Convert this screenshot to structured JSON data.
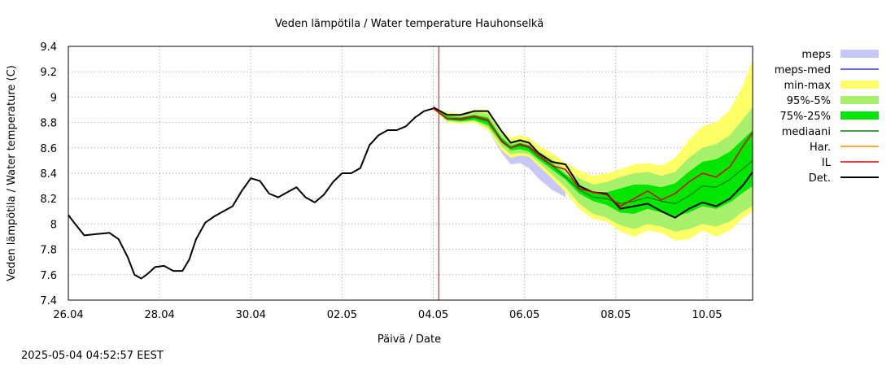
{
  "chart_data": {
    "type": "line",
    "title": "Veden lämpötila / Water temperature Hauhonselkä",
    "xlabel": "Päivä / Date",
    "ylabel": "Veden lämpötila / Water temperature (C)",
    "xlim": [
      0,
      15
    ],
    "ylim": [
      7.4,
      9.4
    ],
    "x_ticks": [
      {
        "x": 0,
        "label": "26.04"
      },
      {
        "x": 2,
        "label": "28.04"
      },
      {
        "x": 4,
        "label": "30.04"
      },
      {
        "x": 6,
        "label": "02.05"
      },
      {
        "x": 8,
        "label": "04.05"
      },
      {
        "x": 10,
        "label": "06.05"
      },
      {
        "x": 12,
        "label": "08.05"
      },
      {
        "x": 14,
        "label": "10.05"
      }
    ],
    "y_ticks": [
      7.4,
      7.6,
      7.8,
      8,
      8.2,
      8.4,
      8.6,
      8.8,
      9,
      9.2,
      9.4
    ],
    "y_tick_labels": [
      "7.4",
      "7.6",
      "7.8",
      "8",
      "8.2",
      "8.4",
      "8.6",
      "8.8",
      "9",
      "9.2",
      "9.4"
    ],
    "grid": true,
    "forecast_start_x": 8.12,
    "legend_position": "right",
    "legend": [
      {
        "label": "meps",
        "kind": "band",
        "color": "#c8c8f8"
      },
      {
        "label": "meps-med",
        "kind": "line",
        "color": "#4040c0"
      },
      {
        "label": "min-max",
        "kind": "band",
        "color": "#ffff66"
      },
      {
        "label": "95%-5%",
        "kind": "band",
        "color": "#a6f06c"
      },
      {
        "label": "75%-25%",
        "kind": "band",
        "color": "#00e600"
      },
      {
        "label": "mediaani",
        "kind": "line",
        "color": "#008000"
      },
      {
        "label": "Har.",
        "kind": "line",
        "color": "#ff8c00"
      },
      {
        "label": "IL",
        "kind": "line",
        "color": "#e00000"
      },
      {
        "label": "Det.",
        "kind": "line",
        "color": "#000000"
      }
    ],
    "observed": {
      "x": [
        0,
        0.15,
        0.35,
        0.6,
        0.9,
        1.1,
        1.3,
        1.45,
        1.6,
        1.75,
        1.9,
        2.1,
        2.3,
        2.5,
        2.65,
        2.8,
        3.0,
        3.2,
        3.4,
        3.6,
        3.8,
        4.0,
        4.2,
        4.4,
        4.6,
        4.8,
        5.0,
        5.2,
        5.4,
        5.6,
        5.8,
        6.0,
        6.2,
        6.4,
        6.6,
        6.8,
        7.0,
        7.2,
        7.4,
        7.6,
        7.8,
        8.0
      ],
      "y": [
        8.07,
        8.0,
        7.91,
        7.92,
        7.93,
        7.88,
        7.74,
        7.6,
        7.57,
        7.61,
        7.66,
        7.67,
        7.63,
        7.63,
        7.72,
        7.88,
        8.01,
        8.06,
        8.1,
        8.14,
        8.26,
        8.36,
        8.34,
        8.24,
        8.21,
        8.25,
        8.29,
        8.21,
        8.17,
        8.23,
        8.33,
        8.4,
        8.4,
        8.44,
        8.62,
        8.7,
        8.74,
        8.74,
        8.77,
        8.84,
        8.89,
        8.91
      ]
    },
    "forecast_x": [
      8.0,
      8.3,
      8.6,
      8.9,
      9.2,
      9.5,
      9.7,
      9.9,
      10.1,
      10.3,
      10.6,
      10.9,
      11.2,
      11.5,
      11.8,
      12.1,
      12.4,
      12.7,
      13.0,
      13.3,
      13.6,
      13.9,
      14.2,
      14.5,
      14.8,
      15.0
    ],
    "series": [
      {
        "name": "min-max",
        "lower": [
          8.91,
          8.8,
          8.79,
          8.8,
          8.74,
          8.58,
          8.52,
          8.54,
          8.53,
          8.46,
          8.36,
          8.25,
          8.12,
          8.04,
          8.02,
          7.94,
          7.9,
          7.95,
          7.93,
          7.87,
          7.88,
          7.95,
          7.9,
          7.95,
          8.05,
          8.1
        ],
        "upper": [
          8.92,
          8.88,
          8.87,
          8.9,
          8.9,
          8.74,
          8.68,
          8.7,
          8.68,
          8.62,
          8.56,
          8.48,
          8.42,
          8.38,
          8.4,
          8.43,
          8.47,
          8.48,
          8.46,
          8.52,
          8.66,
          8.77,
          8.8,
          8.9,
          9.1,
          9.3
        ]
      },
      {
        "name": "95%-5%",
        "lower": [
          8.91,
          8.81,
          8.8,
          8.81,
          8.76,
          8.61,
          8.55,
          8.56,
          8.55,
          8.49,
          8.39,
          8.29,
          8.16,
          8.08,
          8.05,
          7.99,
          7.96,
          8.0,
          7.98,
          7.94,
          7.96,
          8.0,
          7.98,
          8.02,
          8.1,
          8.14
        ],
        "upper": [
          8.92,
          8.87,
          8.86,
          8.88,
          8.87,
          8.71,
          8.65,
          8.67,
          8.65,
          8.58,
          8.51,
          8.43,
          8.36,
          8.31,
          8.33,
          8.37,
          8.4,
          8.41,
          8.38,
          8.41,
          8.52,
          8.6,
          8.63,
          8.7,
          8.83,
          8.92
        ]
      },
      {
        "name": "75%-25%",
        "lower": [
          8.91,
          8.82,
          8.81,
          8.82,
          8.78,
          8.64,
          8.58,
          8.59,
          8.57,
          8.51,
          8.43,
          8.35,
          8.24,
          8.18,
          8.15,
          8.09,
          8.08,
          8.12,
          8.09,
          8.06,
          8.09,
          8.14,
          8.12,
          8.17,
          8.25,
          8.3
        ],
        "upper": [
          8.92,
          8.85,
          8.84,
          8.86,
          8.84,
          8.68,
          8.62,
          8.64,
          8.62,
          8.55,
          8.48,
          8.39,
          8.31,
          8.25,
          8.25,
          8.28,
          8.31,
          8.31,
          8.29,
          8.32,
          8.41,
          8.49,
          8.51,
          8.57,
          8.67,
          8.74
        ]
      },
      {
        "name": "meps",
        "lower": [
          8.91,
          8.81,
          8.8,
          8.81,
          8.74,
          8.56,
          8.47,
          8.48,
          8.44,
          8.36,
          8.27,
          8.21
        ],
        "upper": [
          8.92,
          8.86,
          8.85,
          8.87,
          8.84,
          8.66,
          8.6,
          8.62,
          8.58,
          8.5,
          8.42,
          8.33
        ]
      },
      {
        "name": "mediaani",
        "values": [
          8.91,
          8.83,
          8.82,
          8.84,
          8.81,
          8.66,
          8.6,
          8.62,
          8.6,
          8.53,
          8.46,
          8.37,
          8.27,
          8.21,
          8.2,
          8.16,
          8.18,
          8.21,
          8.18,
          8.16,
          8.22,
          8.3,
          8.29,
          8.35,
          8.44,
          8.5
        ]
      },
      {
        "name": "IL",
        "values": [
          8.91,
          8.83,
          8.83,
          8.85,
          8.82,
          8.65,
          8.6,
          8.63,
          8.61,
          8.55,
          8.46,
          8.43,
          8.28,
          8.25,
          8.23,
          8.14,
          8.2,
          8.26,
          8.19,
          8.24,
          8.33,
          8.4,
          8.37,
          8.45,
          8.62,
          8.72
        ]
      },
      {
        "name": "Det.",
        "values": [
          8.92,
          8.86,
          8.86,
          8.89,
          8.89,
          8.73,
          8.64,
          8.66,
          8.64,
          8.56,
          8.49,
          8.47,
          8.3,
          8.25,
          8.24,
          8.12,
          8.14,
          8.16,
          8.1,
          8.05,
          8.12,
          8.17,
          8.14,
          8.2,
          8.31,
          8.41
        ]
      }
    ]
  },
  "footer": {
    "timestamp": "2025-05-04 04:52:57 EEST"
  }
}
